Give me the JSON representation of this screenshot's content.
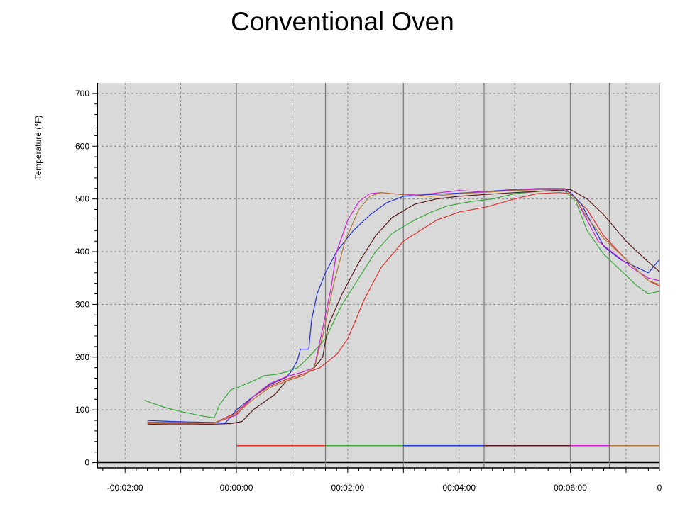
{
  "chart_data": {
    "type": "line",
    "title": "Conventional Oven",
    "ylabel": "Temperature (°F)",
    "xlabel": "",
    "x_unit": "minutes (mm:ss display)",
    "xlim": [
      -2.5,
      7.6
    ],
    "ylim": [
      -10,
      720
    ],
    "y_ticks": [
      0,
      100,
      200,
      300,
      400,
      500,
      600,
      700
    ],
    "x_ticks": [
      {
        "value": -2,
        "label": "-00:02:00"
      },
      {
        "value": 0,
        "label": "00:00:00"
      },
      {
        "value": 2,
        "label": "00:02:00"
      },
      {
        "value": 4,
        "label": "00:04:00"
      },
      {
        "value": 6,
        "label": "00:06:00"
      },
      {
        "value": 7.6,
        "label": "0"
      }
    ],
    "grid": true,
    "plot_background": "#d9d9d9",
    "series": [
      {
        "color": "#e03030",
        "points": [
          [
            -1.6,
            75
          ],
          [
            -1.2,
            74
          ],
          [
            -0.8,
            74
          ],
          [
            -0.4,
            75
          ],
          [
            0,
            95
          ],
          [
            0.3,
            125
          ],
          [
            0.6,
            145
          ],
          [
            0.9,
            158
          ],
          [
            1.2,
            168
          ],
          [
            1.5,
            180
          ],
          [
            1.8,
            205
          ],
          [
            2.0,
            235
          ],
          [
            2.3,
            310
          ],
          [
            2.6,
            370
          ],
          [
            3.0,
            420
          ],
          [
            3.3,
            440
          ],
          [
            3.6,
            460
          ],
          [
            4.0,
            475
          ],
          [
            4.5,
            485
          ],
          [
            5.0,
            500
          ],
          [
            5.4,
            510
          ],
          [
            5.8,
            512
          ],
          [
            6.0,
            510
          ],
          [
            6.3,
            480
          ],
          [
            6.6,
            430
          ],
          [
            7.0,
            385
          ],
          [
            7.4,
            345
          ],
          [
            7.6,
            335
          ]
        ]
      },
      {
        "color": "#3aaa3a",
        "points": [
          [
            -1.65,
            118
          ],
          [
            -1.3,
            105
          ],
          [
            -1.0,
            97
          ],
          [
            -0.6,
            88
          ],
          [
            -0.4,
            85
          ],
          [
            -0.3,
            110
          ],
          [
            -0.1,
            138
          ],
          [
            0.1,
            146
          ],
          [
            0.3,
            155
          ],
          [
            0.5,
            165
          ],
          [
            0.7,
            167
          ],
          [
            0.9,
            172
          ],
          [
            1.1,
            180
          ],
          [
            1.3,
            200
          ],
          [
            1.6,
            235
          ],
          [
            1.9,
            300
          ],
          [
            2.2,
            350
          ],
          [
            2.5,
            400
          ],
          [
            2.8,
            435
          ],
          [
            3.2,
            460
          ],
          [
            3.5,
            475
          ],
          [
            3.8,
            487
          ],
          [
            4.2,
            495
          ],
          [
            4.6,
            500
          ],
          [
            5.0,
            510
          ],
          [
            5.5,
            515
          ],
          [
            5.9,
            515
          ],
          [
            6.1,
            495
          ],
          [
            6.3,
            440
          ],
          [
            6.6,
            395
          ],
          [
            6.9,
            365
          ],
          [
            7.2,
            335
          ],
          [
            7.4,
            320
          ],
          [
            7.6,
            325
          ]
        ]
      },
      {
        "color": "#2233cc",
        "points": [
          [
            -1.6,
            80
          ],
          [
            -1.2,
            78
          ],
          [
            -0.8,
            77
          ],
          [
            -0.4,
            76
          ],
          [
            -0.2,
            75
          ],
          [
            0,
            100
          ],
          [
            0.3,
            125
          ],
          [
            0.6,
            148
          ],
          [
            0.9,
            162
          ],
          [
            1.0,
            175
          ],
          [
            1.1,
            195
          ],
          [
            1.15,
            215
          ],
          [
            1.3,
            215
          ],
          [
            1.35,
            270
          ],
          [
            1.45,
            320
          ],
          [
            1.6,
            360
          ],
          [
            1.8,
            400
          ],
          [
            2.1,
            440
          ],
          [
            2.4,
            470
          ],
          [
            2.7,
            493
          ],
          [
            3.0,
            505
          ],
          [
            3.4,
            508
          ],
          [
            3.8,
            510
          ],
          [
            4.2,
            512
          ],
          [
            4.6,
            515
          ],
          [
            5.0,
            518
          ],
          [
            5.4,
            518
          ],
          [
            5.8,
            518
          ],
          [
            6.0,
            512
          ],
          [
            6.2,
            490
          ],
          [
            6.4,
            450
          ],
          [
            6.6,
            410
          ],
          [
            6.9,
            385
          ],
          [
            7.2,
            370
          ],
          [
            7.4,
            360
          ],
          [
            7.6,
            385
          ]
        ]
      },
      {
        "color": "#cc22cc",
        "points": [
          [
            -1.6,
            77
          ],
          [
            -1.2,
            76
          ],
          [
            -0.8,
            75
          ],
          [
            -0.4,
            75
          ],
          [
            0,
            90
          ],
          [
            0.3,
            125
          ],
          [
            0.6,
            150
          ],
          [
            0.9,
            163
          ],
          [
            1.2,
            172
          ],
          [
            1.4,
            180
          ],
          [
            1.5,
            230
          ],
          [
            1.7,
            330
          ],
          [
            1.8,
            400
          ],
          [
            2.0,
            460
          ],
          [
            2.2,
            495
          ],
          [
            2.4,
            510
          ],
          [
            2.6,
            512
          ],
          [
            3.0,
            508
          ],
          [
            3.5,
            510
          ],
          [
            4.0,
            516
          ],
          [
            4.5,
            513
          ],
          [
            5.0,
            517
          ],
          [
            5.4,
            520
          ],
          [
            5.9,
            520
          ],
          [
            6.1,
            500
          ],
          [
            6.3,
            460
          ],
          [
            6.5,
            420
          ],
          [
            6.8,
            395
          ],
          [
            7.1,
            370
          ],
          [
            7.4,
            350
          ],
          [
            7.6,
            345
          ]
        ]
      },
      {
        "color": "#5a1a1a",
        "points": [
          [
            -1.6,
            73
          ],
          [
            -1.2,
            72
          ],
          [
            -0.8,
            72
          ],
          [
            -0.4,
            73
          ],
          [
            -0.1,
            74
          ],
          [
            0.1,
            78
          ],
          [
            0.3,
            100
          ],
          [
            0.5,
            115
          ],
          [
            0.7,
            130
          ],
          [
            0.9,
            155
          ],
          [
            1.2,
            165
          ],
          [
            1.4,
            180
          ],
          [
            1.55,
            200
          ],
          [
            1.65,
            260
          ],
          [
            1.9,
            320
          ],
          [
            2.2,
            380
          ],
          [
            2.5,
            430
          ],
          [
            2.8,
            465
          ],
          [
            3.2,
            490
          ],
          [
            3.6,
            500
          ],
          [
            4.0,
            505
          ],
          [
            4.4,
            508
          ],
          [
            5.0,
            512
          ],
          [
            5.5,
            515
          ],
          [
            6.0,
            518
          ],
          [
            6.3,
            500
          ],
          [
            6.6,
            470
          ],
          [
            7.0,
            420
          ],
          [
            7.3,
            390
          ],
          [
            7.6,
            362
          ]
        ]
      },
      {
        "color": "#b07a3a",
        "points": [
          [
            -1.6,
            76
          ],
          [
            -1.2,
            75
          ],
          [
            -0.8,
            75
          ],
          [
            -0.4,
            75
          ],
          [
            0,
            92
          ],
          [
            0.3,
            120
          ],
          [
            0.6,
            142
          ],
          [
            0.9,
            155
          ],
          [
            1.2,
            165
          ],
          [
            1.4,
            180
          ],
          [
            1.55,
            240
          ],
          [
            1.75,
            340
          ],
          [
            1.95,
            420
          ],
          [
            2.2,
            480
          ],
          [
            2.4,
            505
          ],
          [
            2.6,
            512
          ],
          [
            3.0,
            508
          ],
          [
            3.5,
            505
          ],
          [
            4.0,
            510
          ],
          [
            4.5,
            513
          ],
          [
            5.0,
            516
          ],
          [
            5.5,
            518
          ],
          [
            5.9,
            518
          ],
          [
            6.1,
            500
          ],
          [
            6.3,
            465
          ],
          [
            6.6,
            425
          ],
          [
            6.9,
            395
          ],
          [
            7.2,
            365
          ],
          [
            7.4,
            345
          ],
          [
            7.6,
            338
          ]
        ]
      }
    ],
    "timeline_segments": [
      {
        "from": 0,
        "to": 1.6,
        "color": "#e03030"
      },
      {
        "from": 1.6,
        "to": 3.0,
        "color": "#3aaa3a"
      },
      {
        "from": 3.0,
        "to": 4.45,
        "color": "#2233cc"
      },
      {
        "from": 4.45,
        "to": 6.0,
        "color": "#5a1a1a"
      },
      {
        "from": 6.0,
        "to": 6.7,
        "color": "#cc22cc"
      },
      {
        "from": 6.7,
        "to": 7.6,
        "color": "#b07a3a"
      }
    ],
    "timeline_level": 32,
    "event_markers": [
      0,
      1.6,
      3.0,
      4.45,
      6.0,
      6.7,
      7.6
    ]
  }
}
